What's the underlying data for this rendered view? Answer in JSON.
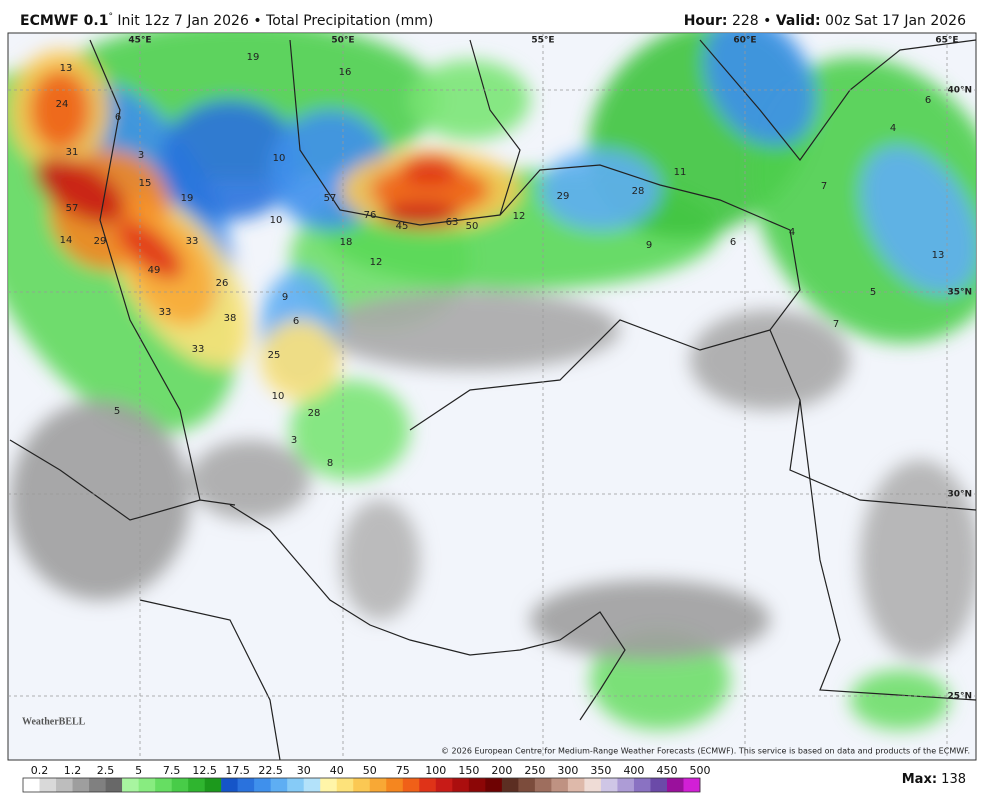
{
  "header": {
    "model": "ECMWF 0.1",
    "model_sup": "°",
    "init": "Init 12z 7 Jan 2026",
    "separator": "•",
    "product": "Total Precipitation (mm)",
    "hour_label": "Hour:",
    "hour": "228",
    "valid_label": "Valid:",
    "valid": "00z Sat 17 Jan 2026"
  },
  "map": {
    "lon_labels": [
      "45°E",
      "50°E",
      "55°E",
      "60°E",
      "65°E"
    ],
    "lat_labels": [
      "40°N",
      "35°N",
      "30°N",
      "25°N"
    ],
    "point_labels": [
      13,
      24,
      31,
      57,
      14,
      29,
      33,
      49,
      26,
      33,
      38,
      33,
      25,
      10,
      28,
      3,
      8,
      15,
      19,
      3,
      6,
      19,
      16,
      10,
      10,
      57,
      76,
      45,
      63,
      50,
      18,
      12,
      9,
      6,
      12,
      29,
      28,
      11,
      9,
      6,
      4,
      7,
      4,
      6,
      13,
      5,
      7,
      5
    ],
    "credit": "© 2026 European Centre for Medium-Range Weather Forecasts (ECMWF). This service is based on data and products of the ECMWF.",
    "logo": "WeatherBELL"
  },
  "colorbar": {
    "ticks": [
      0.2,
      1.2,
      2.5,
      5,
      7.5,
      12.5,
      17.5,
      22.5,
      30,
      40,
      50,
      75,
      100,
      150,
      200,
      250,
      300,
      350,
      400,
      450,
      500
    ],
    "colors": [
      "#ffffff",
      "#d9d9d9",
      "#bdbdbd",
      "#9e9e9e",
      "#808080",
      "#686868",
      "#a8f5a0",
      "#88ec80",
      "#66de62",
      "#48cc48",
      "#2fb52f",
      "#1c991c",
      "#1555c8",
      "#2a72dd",
      "#3f90ec",
      "#5eaef3",
      "#86cbf7",
      "#b3e2fa",
      "#fff5a8",
      "#fde27a",
      "#fbc853",
      "#f8a835",
      "#f5861f",
      "#f06018",
      "#df3318",
      "#c81b17",
      "#ab0e0e",
      "#8c0606",
      "#6e0202",
      "#5c2e22",
      "#7c4c3c",
      "#9e6e5e",
      "#bf9282",
      "#deb9aa",
      "#efdcd6",
      "#cfc6e6",
      "#ad9cd6",
      "#8a72c2",
      "#6b4aa8",
      "#9a109c",
      "#d21fd6"
    ]
  },
  "max": {
    "label": "Max:",
    "value": 138
  }
}
